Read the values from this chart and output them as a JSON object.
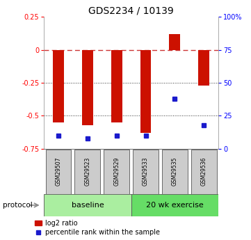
{
  "title": "GDS2234 / 10139",
  "samples": [
    "GSM29507",
    "GSM29523",
    "GSM29529",
    "GSM29533",
    "GSM29535",
    "GSM29536"
  ],
  "log2_ratio": [
    -0.55,
    -0.57,
    -0.55,
    -0.63,
    0.12,
    -0.27
  ],
  "percentile_rank": [
    10,
    8,
    10,
    10,
    38,
    18
  ],
  "ylim_left": [
    -0.75,
    0.25
  ],
  "ylim_right": [
    0,
    100
  ],
  "yticks_left": [
    0.25,
    0,
    -0.25,
    -0.5,
    -0.75
  ],
  "yticks_right": [
    100,
    75,
    50,
    25,
    0
  ],
  "ytick_right_labels": [
    "100%",
    "75",
    "50",
    "25",
    "0"
  ],
  "bar_color": "#CC1100",
  "dot_color": "#1A1ACC",
  "zero_line_color": "#CC3333",
  "grid_color": "#333333",
  "protocol_groups": [
    {
      "label": "baseline",
      "start": 0,
      "end": 3,
      "color": "#AAEEA0"
    },
    {
      "label": "20 wk exercise",
      "start": 3,
      "end": 6,
      "color": "#66DD66"
    }
  ],
  "sample_box_color": "#CCCCCC",
  "title_fontsize": 10,
  "tick_fontsize": 7,
  "sample_fontsize": 5.5,
  "proto_fontsize": 8,
  "legend_fontsize": 7
}
